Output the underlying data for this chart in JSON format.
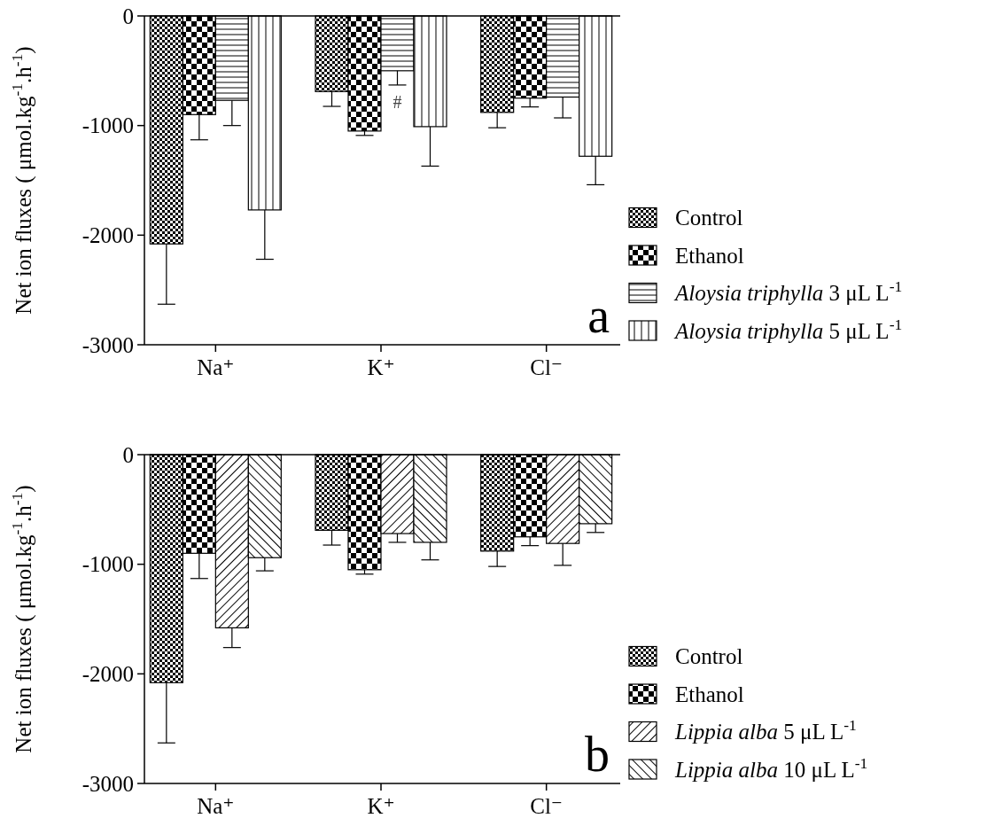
{
  "chart_data": [
    {
      "type": "bar",
      "ylabel": "Net ion fluxes ( μmol.kg$^{-1}$.h$^{-1}$)",
      "categories": [
        "Na⁺",
        "K⁺",
        "Cl⁻"
      ],
      "ylim": [
        -3000,
        0
      ],
      "yticks": [
        -3000,
        -2000,
        -1000,
        0
      ],
      "legend": "right",
      "grid": false,
      "series": [
        {
          "name": "Control",
          "color": "#000000",
          "values": [
            -2080,
            -690,
            -880
          ],
          "errors": [
            [
              -2630,
              -2080
            ],
            [
              -825,
              -690
            ],
            [
              -1020,
              -880
            ]
          ]
        },
        {
          "name": "Ethanol",
          "color": "#000000",
          "values": [
            -900,
            -1050,
            -750
          ],
          "errors": [
            [
              -1130,
              -900
            ],
            [
              -1090,
              -1050
            ],
            [
              -830,
              -750
            ]
          ]
        },
        {
          "name": "Aloysia triphylla 3  μL L$^{-1}$",
          "color": "#000000",
          "values": [
            -770,
            -500,
            -740
          ],
          "errors": [
            [
              -1000,
              -770
            ],
            [
              -630,
              -500
            ],
            [
              -930,
              -740
            ]
          ]
        },
        {
          "name": "Aloysia triphylla 5  μL L$^{-1}$",
          "color": "#000000",
          "values": [
            -1770,
            -1010,
            -1280
          ],
          "errors": [
            [
              -2220,
              -1770
            ],
            [
              -1370,
              -1010
            ],
            [
              -1540,
              -1280
            ]
          ]
        }
      ],
      "annotations": [
        "a",
        {
          "text": "#",
          "x": "K⁺",
          "y": -630
        }
      ]
    },
    {
      "type": "bar",
      "ylabel": "Net ion fluxes ( μmol.kg$^{-1}$.h$^{-1}$)",
      "categories": [
        "Na⁺",
        "K⁺",
        "Cl⁻"
      ],
      "ylim": [
        -3000,
        0
      ],
      "yticks": [
        -3000,
        -2000,
        -1000,
        0
      ],
      "legend": "right",
      "grid": false,
      "series": [
        {
          "name": "Control",
          "color": "#000000",
          "values": [
            -2080,
            -690,
            -880
          ],
          "errors": [
            [
              -2630,
              -2080
            ],
            [
              -825,
              -690
            ],
            [
              -1020,
              -880
            ]
          ]
        },
        {
          "name": "Ethanol",
          "color": "#000000",
          "values": [
            -900,
            -1050,
            -750
          ],
          "errors": [
            [
              -1130,
              -900
            ],
            [
              -1090,
              -1050
            ],
            [
              -830,
              -750
            ]
          ]
        },
        {
          "name": "Lippia alba 5  μL L$^{-1}$",
          "color": "#000000",
          "values": [
            -1580,
            -720,
            -810
          ],
          "errors": [
            [
              -1760,
              -1580
            ],
            [
              -800,
              -720
            ],
            [
              -1010,
              -810
            ]
          ]
        },
        {
          "name": "Lippia alba 10  μL L$^{-1}$",
          "color": "#000000",
          "values": [
            -940,
            -800,
            -630
          ],
          "errors": [
            [
              -1060,
              -940
            ],
            [
              -960,
              -800
            ],
            [
              -710,
              -630
            ]
          ]
        }
      ],
      "annotations": [
        "b"
      ]
    }
  ]
}
